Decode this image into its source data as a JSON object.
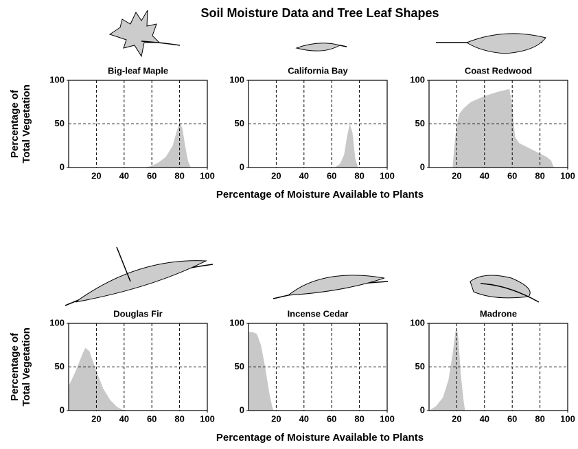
{
  "title": "Soil Moisture Data and Tree Leaf Shapes",
  "rows": [
    {
      "y_label": [
        "Percentage of",
        "Total Vegetation"
      ],
      "x_label": "Percentage of Moisture Available to Plants"
    },
    {
      "y_label": [
        "Percentage of",
        "Total Vegetation"
      ],
      "x_label": "Percentage of Moisture Available to Plants"
    }
  ],
  "chart_data": [
    {
      "type": "area",
      "title": "Big-leaf Maple",
      "color": "#c8c8c8",
      "grid": true,
      "x": [
        55,
        60,
        65,
        70,
        75,
        78,
        80,
        82,
        84,
        86,
        88
      ],
      "values": [
        0,
        2,
        6,
        12,
        25,
        42,
        52,
        45,
        25,
        8,
        0
      ],
      "xlim": [
        0,
        100
      ],
      "ylim": [
        0,
        100
      ],
      "xticks": [
        20,
        40,
        60,
        80,
        100
      ],
      "yticks": [
        0,
        50,
        100
      ]
    },
    {
      "type": "area",
      "title": "California Bay",
      "color": "#c8c8c8",
      "grid": true,
      "x": [
        62,
        66,
        69,
        71,
        73,
        75,
        77,
        79
      ],
      "values": [
        0,
        4,
        15,
        35,
        50,
        40,
        10,
        0
      ],
      "xlim": [
        0,
        100
      ],
      "ylim": [
        0,
        100
      ],
      "xticks": [
        20,
        40,
        60,
        80,
        100
      ],
      "yticks": [
        0,
        50,
        100
      ]
    },
    {
      "type": "area",
      "title": "Coast Redwood",
      "color": "#c8c8c8",
      "grid": true,
      "x": [
        17,
        18,
        20,
        22,
        25,
        30,
        40,
        50,
        58,
        60,
        62,
        65,
        75,
        85,
        88,
        90
      ],
      "values": [
        0,
        20,
        50,
        62,
        68,
        75,
        82,
        87,
        90,
        70,
        35,
        28,
        20,
        12,
        8,
        0
      ],
      "xlim": [
        0,
        100
      ],
      "ylim": [
        0,
        100
      ],
      "xticks": [
        20,
        40,
        60,
        80,
        100
      ],
      "yticks": [
        0,
        50,
        100
      ]
    },
    {
      "type": "area",
      "title": "Douglas Fir",
      "color": "#c8c8c8",
      "grid": true,
      "x": [
        0,
        5,
        10,
        12,
        15,
        20,
        25,
        30,
        35,
        40
      ],
      "values": [
        28,
        45,
        65,
        72,
        68,
        45,
        25,
        12,
        4,
        0
      ],
      "xlim": [
        0,
        100
      ],
      "ylim": [
        0,
        100
      ],
      "xticks": [
        20,
        40,
        60,
        80,
        100
      ],
      "yticks": [
        0,
        50,
        100
      ]
    },
    {
      "type": "area",
      "title": "Incense Cedar",
      "color": "#c8c8c8",
      "grid": true,
      "x": [
        0,
        3,
        6,
        9,
        12,
        15,
        17,
        18
      ],
      "values": [
        90,
        90,
        88,
        75,
        50,
        20,
        5,
        0
      ],
      "xlim": [
        0,
        100
      ],
      "ylim": [
        0,
        100
      ],
      "xticks": [
        20,
        40,
        60,
        80,
        100
      ],
      "yticks": [
        0,
        50,
        100
      ]
    },
    {
      "type": "area",
      "title": "Madrone",
      "color": "#c8c8c8",
      "grid": true,
      "x": [
        0,
        5,
        10,
        14,
        17,
        19,
        20,
        21,
        23,
        25,
        26
      ],
      "values": [
        0,
        5,
        15,
        35,
        65,
        90,
        95,
        85,
        40,
        10,
        0
      ],
      "xlim": [
        0,
        100
      ],
      "ylim": [
        0,
        100
      ],
      "xticks": [
        20,
        40,
        60,
        80,
        100
      ],
      "yticks": [
        0,
        50,
        100
      ]
    }
  ]
}
